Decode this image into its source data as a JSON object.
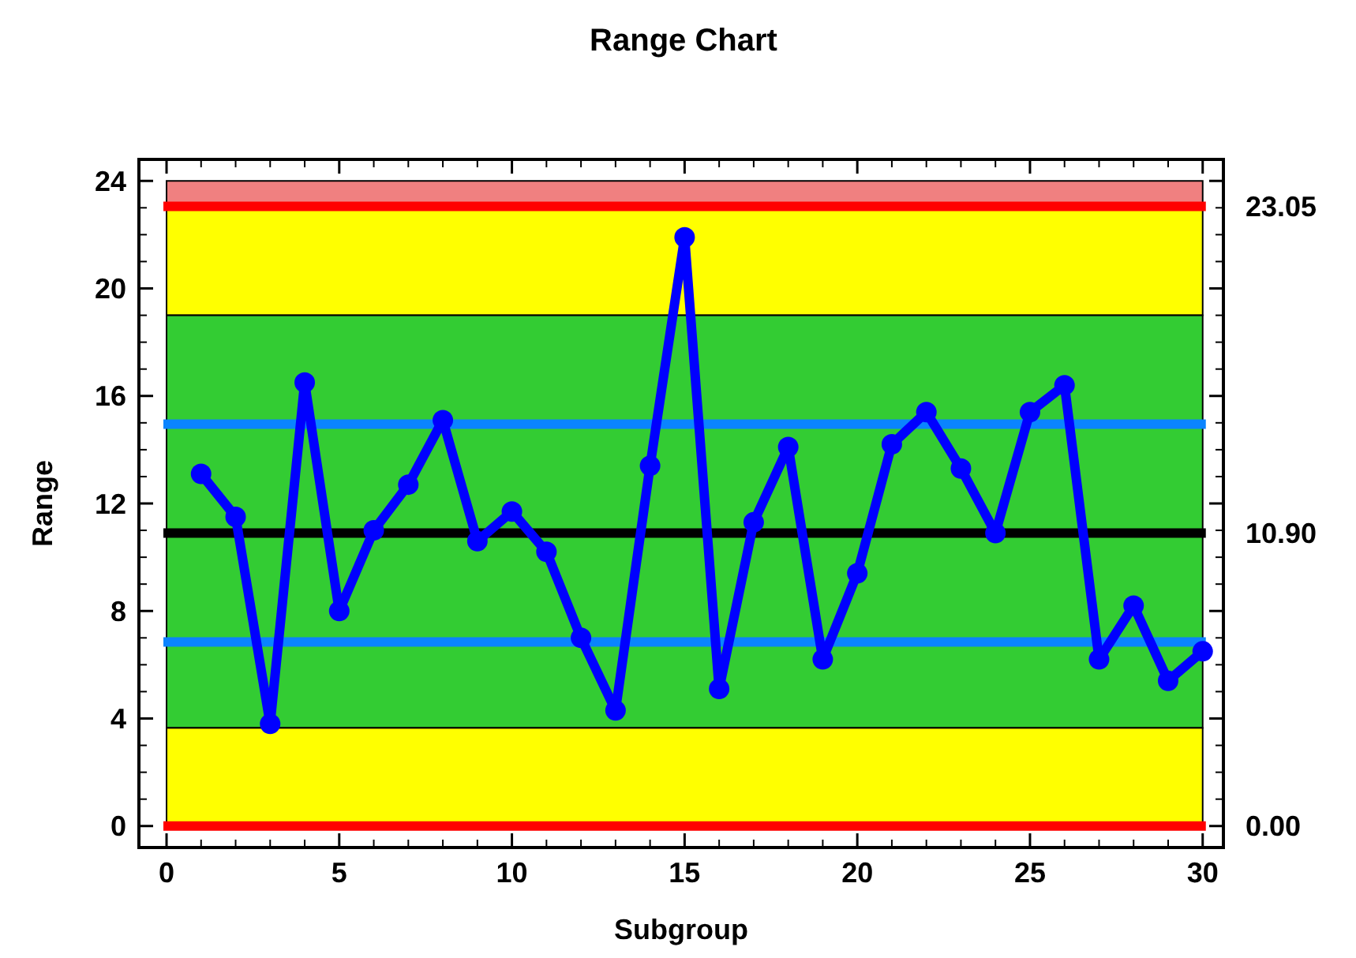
{
  "chart_data": {
    "type": "line",
    "title": "Range Chart",
    "xlabel": "Subgroup",
    "ylabel": "Range",
    "x": [
      1,
      2,
      3,
      4,
      5,
      6,
      7,
      8,
      9,
      10,
      11,
      12,
      13,
      14,
      15,
      16,
      17,
      18,
      19,
      20,
      21,
      22,
      23,
      24,
      25,
      26,
      27,
      28,
      29,
      30
    ],
    "series": [
      {
        "color": "#0000ff",
        "values": [
          13.1,
          11.5,
          3.8,
          16.5,
          8.0,
          11.0,
          12.7,
          15.1,
          10.6,
          11.7,
          10.2,
          7.0,
          4.3,
          13.4,
          21.9,
          5.1,
          11.3,
          14.1,
          6.2,
          9.4,
          14.2,
          15.4,
          13.3,
          10.9,
          15.4,
          16.4,
          6.2,
          8.2,
          5.4,
          6.5
        ]
      }
    ],
    "xlim": [
      -0.8,
      30.6
    ],
    "ylim": [
      -0.8,
      24.8
    ],
    "xticks": [
      0,
      5,
      10,
      15,
      20,
      25,
      30
    ],
    "yticks": [
      0,
      4,
      8,
      12,
      16,
      20,
      24
    ],
    "bands": [
      {
        "axis": "y",
        "from": 23.05,
        "to": 24,
        "color": "#f08080"
      },
      {
        "axis": "y",
        "from": 19.0,
        "to": 23.05,
        "color": "#ffff00"
      },
      {
        "axis": "y",
        "from": 3.65,
        "to": 19.0,
        "color": "#33cc33"
      },
      {
        "axis": "y",
        "from": 0,
        "to": 3.65,
        "color": "#ffff00"
      }
    ],
    "ref_lines": [
      {
        "axis": "y",
        "value": 23.05,
        "label": "23.05",
        "color": "#ff0000"
      },
      {
        "axis": "y",
        "value": 14.95,
        "color": "#0a84ff"
      },
      {
        "axis": "y",
        "value": 10.9,
        "label": "10.90",
        "color": "#000000"
      },
      {
        "axis": "y",
        "value": 6.85,
        "color": "#0a84ff"
      },
      {
        "axis": "y",
        "value": 0,
        "label": "0.00",
        "color": "#ff0000"
      }
    ],
    "marker": "circle",
    "line_style": "solid",
    "grid": false
  }
}
